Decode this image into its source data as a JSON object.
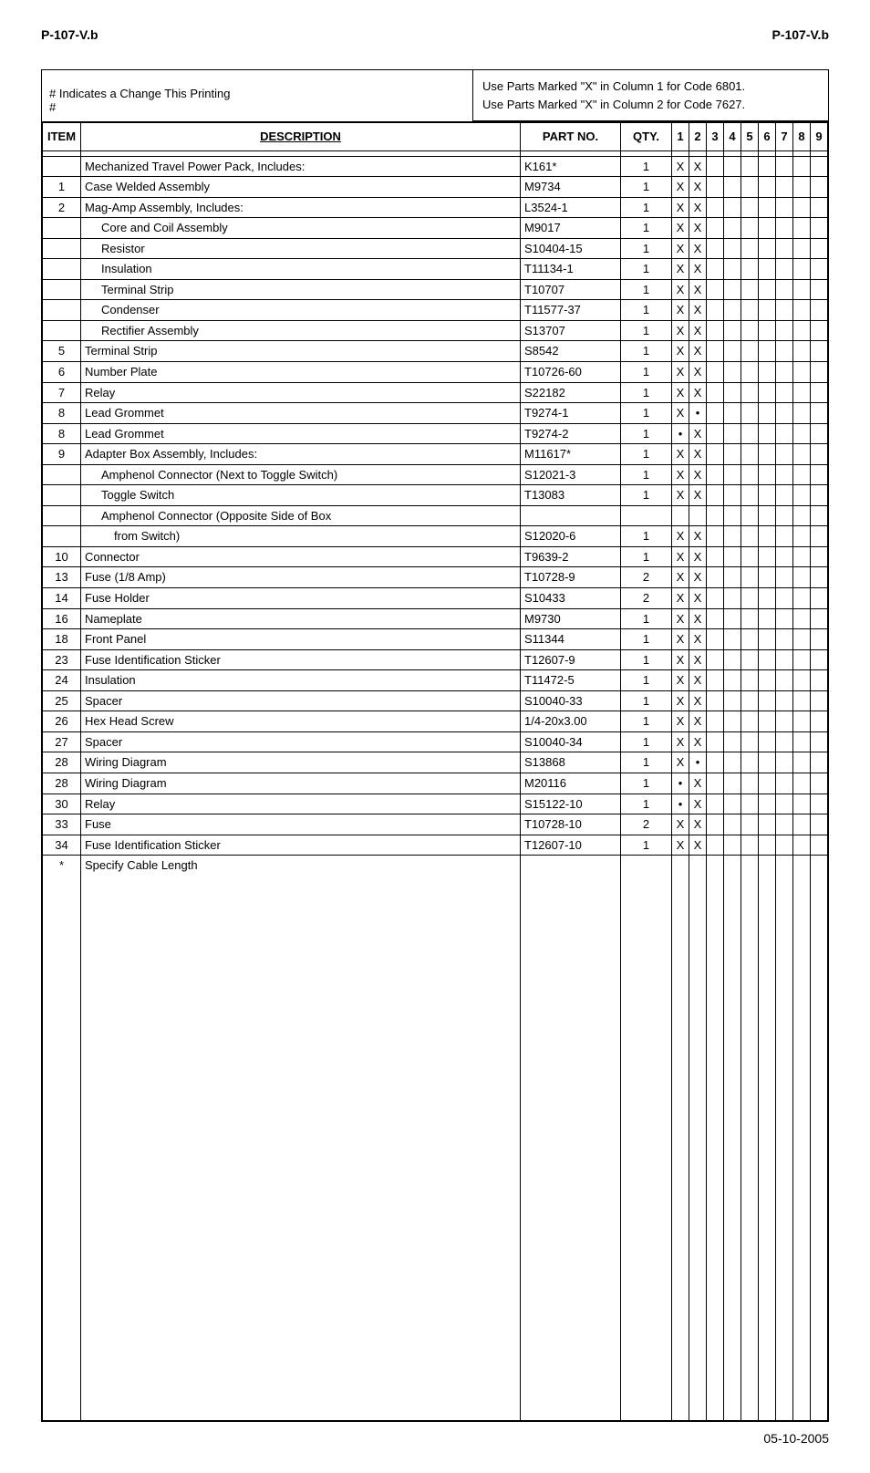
{
  "header": {
    "left": "P-107-V.b",
    "right": "P-107-V.b"
  },
  "notes": {
    "change_indicator_line1": "# Indicates a Change This Printing",
    "change_indicator_line2": "#",
    "code_line1": "Use Parts Marked \"X\" in Column 1 for Code 6801.",
    "code_line2": "Use Parts Marked \"X\" in Column 2 for Code 7627."
  },
  "columns": {
    "item": "ITEM",
    "description": "DESCRIPTION",
    "part_no": "PART NO.",
    "qty": "QTY.",
    "n1": "1",
    "n2": "2",
    "n3": "3",
    "n4": "4",
    "n5": "5",
    "n6": "6",
    "n7": "7",
    "n8": "8",
    "n9": "9"
  },
  "groups": [
    [
      {
        "item": "",
        "desc": "Mechanized Travel Power Pack, Includes:",
        "indent": 0,
        "part": "K161*",
        "qty": "1",
        "c": [
          "X",
          "X",
          "",
          "",
          "",
          "",
          "",
          "",
          ""
        ]
      }
    ],
    [
      {
        "item": "1",
        "desc": "Case Welded Assembly",
        "indent": 0,
        "part": "M9734",
        "qty": "1",
        "c": [
          "X",
          "X",
          "",
          "",
          "",
          "",
          "",
          "",
          ""
        ]
      }
    ],
    [
      {
        "item": "2",
        "desc": "Mag-Amp Assembly, Includes:",
        "indent": 0,
        "part": "L3524-1",
        "qty": "1",
        "c": [
          "X",
          "X",
          "",
          "",
          "",
          "",
          "",
          "",
          ""
        ]
      },
      {
        "item": "",
        "desc": "Core and Coil Assembly",
        "indent": 1,
        "part": "M9017",
        "qty": "1",
        "c": [
          "X",
          "X",
          "",
          "",
          "",
          "",
          "",
          "",
          ""
        ]
      },
      {
        "item": "",
        "desc": "Resistor",
        "indent": 1,
        "part": "S10404-15",
        "qty": "1",
        "c": [
          "X",
          "X",
          "",
          "",
          "",
          "",
          "",
          "",
          ""
        ]
      },
      {
        "item": "",
        "desc": "Insulation",
        "indent": 1,
        "part": "T11134-1",
        "qty": "1",
        "c": [
          "X",
          "X",
          "",
          "",
          "",
          "",
          "",
          "",
          ""
        ]
      },
      {
        "item": "",
        "desc": "Terminal Strip",
        "indent": 1,
        "part": "T10707",
        "qty": "1",
        "c": [
          "X",
          "X",
          "",
          "",
          "",
          "",
          "",
          "",
          ""
        ]
      },
      {
        "item": "",
        "desc": "Condenser",
        "indent": 1,
        "part": "T11577-37",
        "qty": "1",
        "c": [
          "X",
          "X",
          "",
          "",
          "",
          "",
          "",
          "",
          ""
        ]
      },
      {
        "item": "",
        "desc": "Rectifier Assembly",
        "indent": 1,
        "part": "S13707",
        "qty": "1",
        "c": [
          "X",
          "X",
          "",
          "",
          "",
          "",
          "",
          "",
          ""
        ]
      }
    ],
    [
      {
        "item": "5",
        "desc": "Terminal Strip",
        "indent": 0,
        "part": "S8542",
        "qty": "1",
        "c": [
          "X",
          "X",
          "",
          "",
          "",
          "",
          "",
          "",
          ""
        ]
      },
      {
        "item": "6",
        "desc": "Number Plate",
        "indent": 0,
        "part": "T10726-60",
        "qty": "1",
        "c": [
          "X",
          "X",
          "",
          "",
          "",
          "",
          "",
          "",
          ""
        ]
      },
      {
        "item": "7",
        "desc": "Relay",
        "indent": 0,
        "part": "S22182",
        "qty": "1",
        "c": [
          "X",
          "X",
          "",
          "",
          "",
          "",
          "",
          "",
          ""
        ]
      }
    ],
    [
      {
        "item": "8",
        "desc": "Lead Grommet",
        "indent": 0,
        "part": "T9274-1",
        "qty": "1",
        "c": [
          "X",
          "•",
          "",
          "",
          "",
          "",
          "",
          "",
          ""
        ]
      },
      {
        "item": "8",
        "desc": "Lead Grommet",
        "indent": 0,
        "part": "T9274-2",
        "qty": "1",
        "c": [
          "•",
          "X",
          "",
          "",
          "",
          "",
          "",
          "",
          ""
        ]
      }
    ],
    [
      {
        "item": "9",
        "desc": "Adapter Box Assembly, Includes:",
        "indent": 0,
        "part": "M11617*",
        "qty": "1",
        "c": [
          "X",
          "X",
          "",
          "",
          "",
          "",
          "",
          "",
          ""
        ]
      },
      {
        "item": "",
        "desc": "Amphenol Connector (Next to Toggle Switch)",
        "indent": 1,
        "part": "S12021-3",
        "qty": "1",
        "c": [
          "X",
          "X",
          "",
          "",
          "",
          "",
          "",
          "",
          ""
        ]
      },
      {
        "item": "",
        "desc": "Toggle Switch",
        "indent": 1,
        "part": "T13083",
        "qty": "1",
        "c": [
          "X",
          "X",
          "",
          "",
          "",
          "",
          "",
          "",
          ""
        ]
      },
      {
        "item": "",
        "desc": "Amphenol Connector (Opposite Side of Box",
        "indent": 1,
        "part": "",
        "qty": "",
        "c": [
          "",
          "",
          "",
          "",
          "",
          "",
          "",
          "",
          ""
        ]
      },
      {
        "item": "",
        "desc": "from Switch)",
        "indent": 2,
        "part": "S12020-6",
        "qty": "1",
        "c": [
          "X",
          "X",
          "",
          "",
          "",
          "",
          "",
          "",
          ""
        ]
      }
    ],
    [
      {
        "item": "10",
        "desc": "Connector",
        "indent": 0,
        "part": "T9639-2",
        "qty": "1",
        "c": [
          "X",
          "X",
          "",
          "",
          "",
          "",
          "",
          "",
          ""
        ]
      },
      {
        "item": "13",
        "desc": "Fuse (1/8 Amp)",
        "indent": 0,
        "part": "T10728-9",
        "qty": "2",
        "c": [
          "X",
          "X",
          "",
          "",
          "",
          "",
          "",
          "",
          ""
        ]
      },
      {
        "item": "14",
        "desc": "Fuse Holder",
        "indent": 0,
        "part": "S10433",
        "qty": "2",
        "c": [
          "X",
          "X",
          "",
          "",
          "",
          "",
          "",
          "",
          ""
        ]
      }
    ],
    [
      {
        "item": "16",
        "desc": "Nameplate",
        "indent": 0,
        "part": "M9730",
        "qty": "1",
        "c": [
          "X",
          "X",
          "",
          "",
          "",
          "",
          "",
          "",
          ""
        ]
      },
      {
        "item": "18",
        "desc": "Front Panel",
        "indent": 0,
        "part": "S11344",
        "qty": "1",
        "c": [
          "X",
          "X",
          "",
          "",
          "",
          "",
          "",
          "",
          ""
        ]
      },
      {
        "item": "23",
        "desc": "Fuse Identification Sticker",
        "indent": 0,
        "part": "T12607-9",
        "qty": "1",
        "c": [
          "X",
          "X",
          "",
          "",
          "",
          "",
          "",
          "",
          ""
        ]
      }
    ],
    [
      {
        "item": "24",
        "desc": "Insulation",
        "indent": 0,
        "part": "T11472-5",
        "qty": "1",
        "c": [
          "X",
          "X",
          "",
          "",
          "",
          "",
          "",
          "",
          ""
        ]
      },
      {
        "item": "25",
        "desc": "Spacer",
        "indent": 0,
        "part": "S10040-33",
        "qty": "1",
        "c": [
          "X",
          "X",
          "",
          "",
          "",
          "",
          "",
          "",
          ""
        ]
      },
      {
        "item": "26",
        "desc": "Hex Head Screw",
        "indent": 0,
        "part": "1/4-20x3.00",
        "qty": "1",
        "c": [
          "X",
          "X",
          "",
          "",
          "",
          "",
          "",
          "",
          ""
        ]
      }
    ],
    [
      {
        "item": "27",
        "desc": "Spacer",
        "indent": 0,
        "part": "S10040-34",
        "qty": "1",
        "c": [
          "X",
          "X",
          "",
          "",
          "",
          "",
          "",
          "",
          ""
        ]
      },
      {
        "item": "28",
        "desc": "Wiring Diagram",
        "indent": 0,
        "part": "S13868",
        "qty": "1",
        "c": [
          "X",
          "•",
          "",
          "",
          "",
          "",
          "",
          "",
          ""
        ]
      },
      {
        "item": "28",
        "desc": "Wiring Diagram",
        "indent": 0,
        "part": "M20116",
        "qty": "1",
        "c": [
          "•",
          "X",
          "",
          "",
          "",
          "",
          "",
          "",
          ""
        ]
      }
    ],
    [
      {
        "item": "30",
        "desc": "Relay",
        "indent": 0,
        "part": "S15122-10",
        "qty": "1",
        "c": [
          "•",
          "X",
          "",
          "",
          "",
          "",
          "",
          "",
          ""
        ]
      },
      {
        "item": "33",
        "desc": "Fuse",
        "indent": 0,
        "part": "T10728-10",
        "qty": "2",
        "c": [
          "X",
          "X",
          "",
          "",
          "",
          "",
          "",
          "",
          ""
        ]
      },
      {
        "item": "34",
        "desc": "Fuse Identification Sticker",
        "indent": 0,
        "part": "T12607-10",
        "qty": "1",
        "c": [
          "X",
          "X",
          "",
          "",
          "",
          "",
          "",
          "",
          ""
        ]
      }
    ]
  ],
  "footnote": {
    "mark": "*",
    "text": "Specify Cable Length"
  },
  "footer_date": "05-10-2005"
}
